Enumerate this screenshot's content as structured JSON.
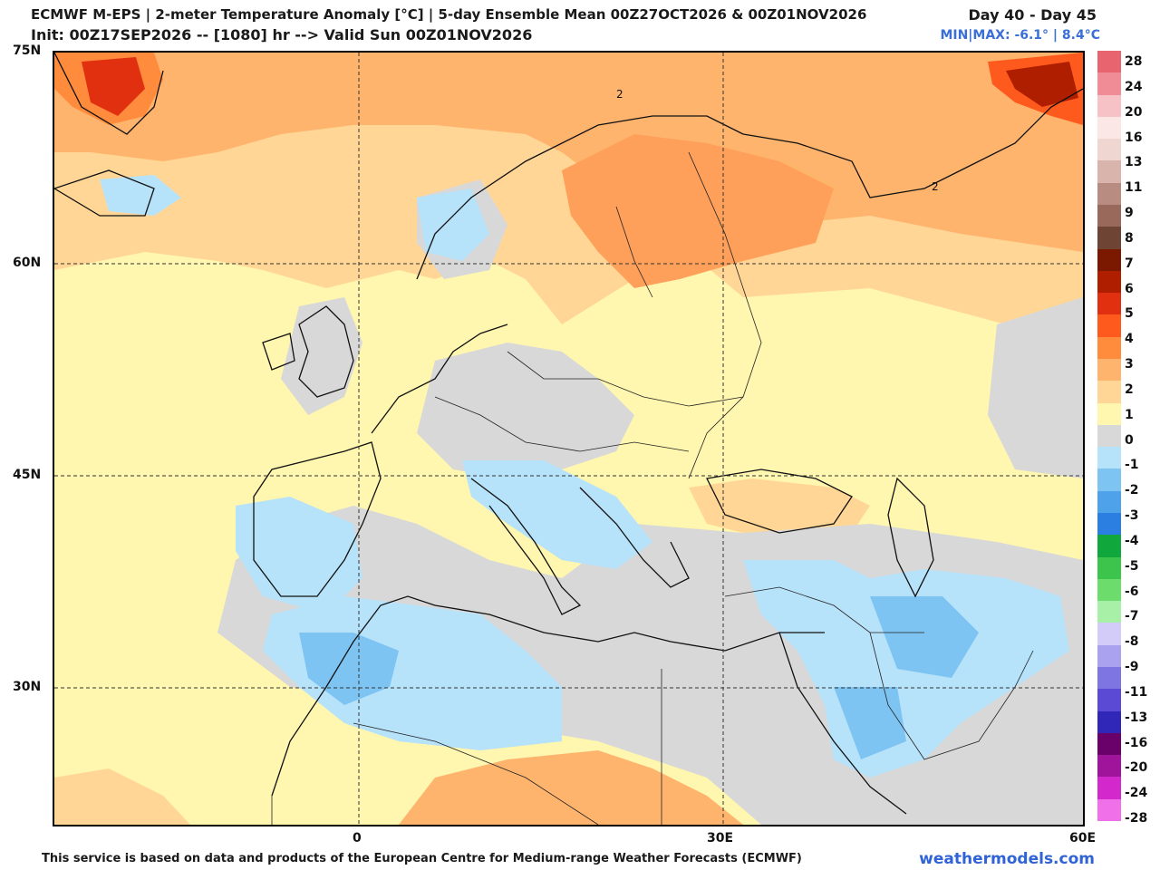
{
  "header": {
    "line1": "ECMWF M-EPS | 2-meter Temperature Anomaly [°C] | 5-day Ensemble Mean 00Z27OCT2026 & 00Z01NOV2026",
    "line2": "Init: 00Z17SEP2026 -- [1080] hr --> Valid Sun 00Z01NOV2026",
    "day_range": "Day 40 - Day 45",
    "minmax": "MIN|MAX: -6.1° | 8.4°C"
  },
  "axes": {
    "lat_labels": [
      "75N",
      "60N",
      "45N",
      "30N"
    ],
    "lon_labels": [
      "0",
      "30E",
      "60E"
    ]
  },
  "contour_labels": [
    "2",
    "2"
  ],
  "legend": {
    "levels": [
      "28",
      "24",
      "20",
      "16",
      "13",
      "11",
      "9",
      "8",
      "7",
      "6",
      "5",
      "4",
      "3",
      "2",
      "1",
      "0",
      "-1",
      "-2",
      "-3",
      "-4",
      "-5",
      "-6",
      "-7",
      "-8",
      "-9",
      "-11",
      "-13",
      "-16",
      "-20",
      "-24",
      "-28"
    ],
    "colors": [
      "#e8646e",
      "#f08c96",
      "#f7c2c6",
      "#fbe7e6",
      "#efd6d0",
      "#d8b4ad",
      "#b98c82",
      "#996a5c",
      "#6e4434",
      "#7a1800",
      "#b01e00",
      "#e03010",
      "#ff5a1e",
      "#ff8c3c",
      "#ffb46e",
      "#ffd696",
      "#fff6b0",
      "#d8d8d8",
      "#b6e2fa",
      "#7ec4f2",
      "#4ea2ea",
      "#2a7fe0",
      "#10a83c",
      "#3cc44c",
      "#6cdc6c",
      "#a8f0a8",
      "#d4ccf8",
      "#aaa2ee",
      "#7e74e2",
      "#5a4ad4",
      "#3026b8",
      "#6a006a",
      "#a0149c",
      "#d228cc",
      "#f070ea"
    ]
  },
  "footer": {
    "credit": "This service is based on data and products of the European Centre for Medium-range Weather Forecasts (ECMWF)",
    "site": "weathermodels.com"
  }
}
